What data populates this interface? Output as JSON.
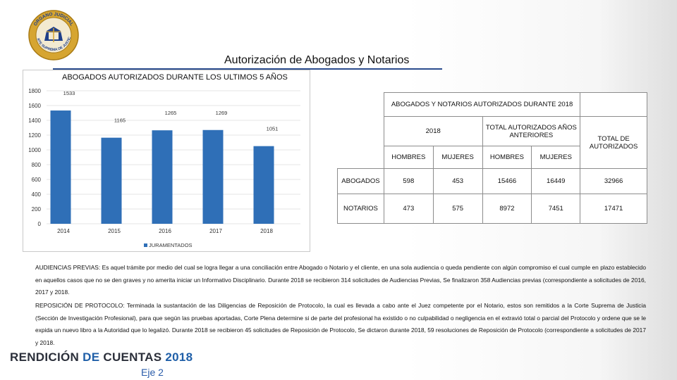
{
  "header": {
    "main_title": "Autorización de Abogados y Notarios",
    "seal_text_top": "ORGANO JUDICIAL",
    "seal_text_bottom": "CORTE SUPREMA DE JUSTICIA"
  },
  "chart_data": {
    "type": "bar",
    "title": "ABOGADOS AUTORIZADOS DURANTE LOS ULTIMOS 5 AÑOS",
    "categories": [
      "2014",
      "2015",
      "2016",
      "2017",
      "2018"
    ],
    "series": [
      {
        "name": "JURAMENTADOS",
        "values": [
          1533,
          1165,
          1265,
          1269,
          1051
        ]
      }
    ],
    "value_labels": [
      "1533",
      "1165",
      "1265",
      "1269",
      "1051"
    ],
    "ylim": [
      0,
      1800
    ],
    "yticks": [
      "0",
      "200",
      "400",
      "600",
      "800",
      "1000",
      "1200",
      "1400",
      "1600",
      "1800"
    ],
    "grid": true,
    "legend": "bottom-left",
    "bar_color": "#2f6fb7"
  },
  "table": {
    "title": "ABOGADOS Y NOTARIOS AUTORIZADOS DURANTE 2018",
    "group_2018": "2018",
    "group_prev": "TOTAL AUTORIZADOS AÑOS ANTERIORES",
    "total_header": "TOTAL DE AUTORIZADOS",
    "sub_headers": [
      "HOMBRES",
      "MUJERES",
      "HOMBRES",
      "MUJERES"
    ],
    "rows": [
      {
        "label": "ABOGADOS",
        "values": [
          "598",
          "453",
          "15466",
          "16449",
          "32966"
        ]
      },
      {
        "label": "NOTARIOS",
        "values": [
          "473",
          "575",
          "8972",
          "7451",
          "17471"
        ]
      }
    ]
  },
  "paragraphs": {
    "p1": "AUDIENCIAS PREVIAS: Es aquel trámite por medio del cual se logra llegar a una conciliación entre Abogado o Notario y el cliente, en una sola audiencia o queda pendiente con algún compromiso el cual cumple en plazo establecido en aquellos casos que no se den graves y no amerita iniciar un Informativo Disciplinario. Durante 2018 se recibieron 314 solicitudes de Audiencias Previas, Se finalizaron 358 Audiencias previas (correspondiente a solicitudes de 2016, 2017 y 2018.",
    "p2": "REPOSICIÓN DE PROTOCOLO: Terminada la sustantación de las Diligencias de Reposición de Protocolo, la cual es llevada a cabo ante el Juez competente por el Notario, estos son remitidos a la Corte Suprema de Justicia (Sección de Investigación Profesional), para que según las pruebas aportadas, Corte Plena determine si de parte del profesional ha existido o no culpabilidad o negligencia en el extravió total o parcial del Protocolo y ordene que se le expida un nuevo libro a la Autoridad que lo legalizó. Durante 2018 se recibieron 45 solicitudes de Reposición de Protocolo, Se dictaron durante 2018, 59 resoluciones de Reposición de Protocolo (correspondiente a solicitudes de 2017 y 2018."
  },
  "footer": {
    "rendicion_1": "RENDICIÓN",
    "rendicion_2": "DE",
    "rendicion_3": "CUENTAS",
    "rendicion_4": "2018",
    "eje": "Eje 2"
  }
}
